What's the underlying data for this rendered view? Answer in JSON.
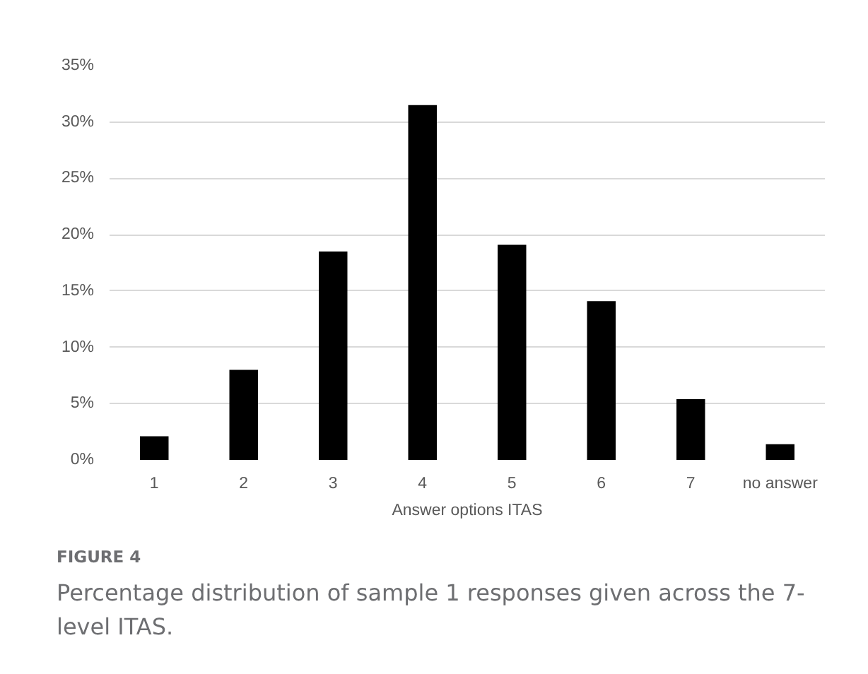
{
  "chart_data": {
    "type": "bar",
    "xlabel": "Answer options ITAS",
    "categories": [
      "1",
      "2",
      "3",
      "4",
      "5",
      "6",
      "7",
      "no answer"
    ],
    "values": [
      2.1,
      8.0,
      18.5,
      31.5,
      19.1,
      14.1,
      5.4,
      1.4
    ],
    "color": "#000000",
    "ylim": [
      0,
      35
    ],
    "yticks": [
      {
        "value": 0,
        "label": "0%"
      },
      {
        "value": 5,
        "label": "5%"
      },
      {
        "value": 10,
        "label": "10%"
      },
      {
        "value": 15,
        "label": "15%"
      },
      {
        "value": 20,
        "label": "20%"
      },
      {
        "value": 25,
        "label": "25%"
      },
      {
        "value": 30,
        "label": "30%"
      },
      {
        "value": 35,
        "label": "35%"
      }
    ],
    "grid": "y",
    "annotations": [
      "FIGURE 4",
      "Percentage distribution of sample 1 responses given across the 7-level ITAS."
    ]
  }
}
